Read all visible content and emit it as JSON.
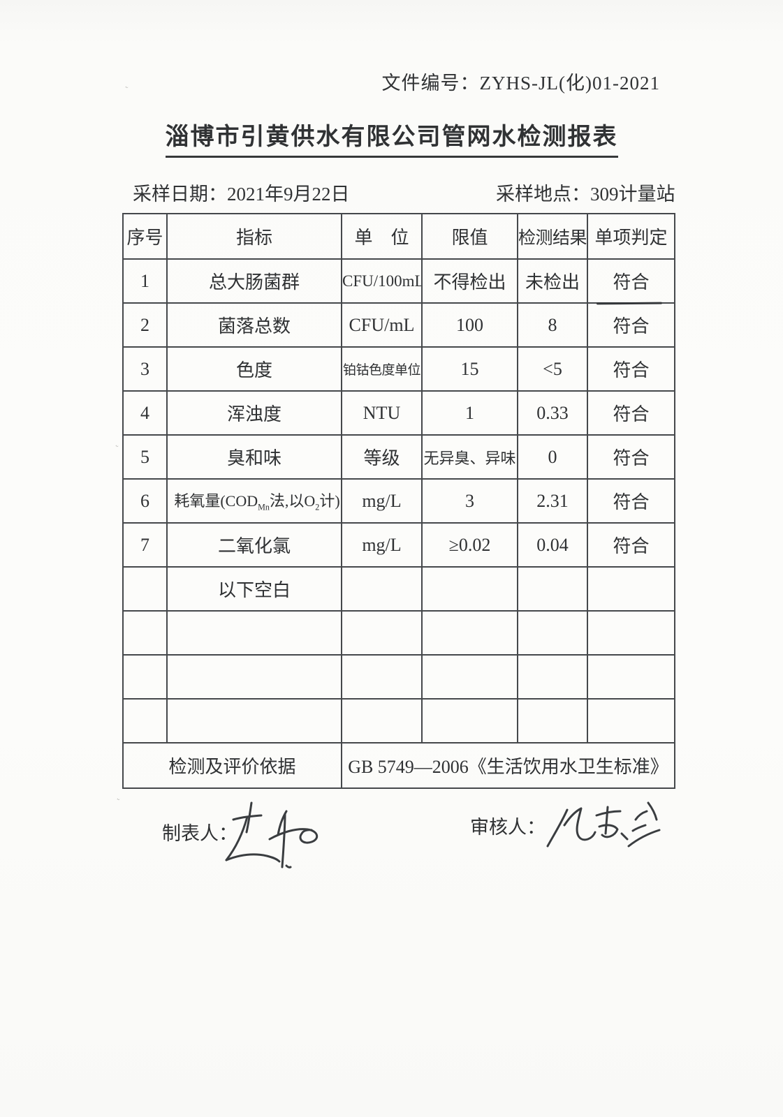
{
  "header": {
    "doc_number_label": "文件编号：",
    "doc_number": "ZYHS-JL(化)01-2021",
    "title": "淄博市引黄供水有限公司管网水检测报表",
    "sample_date_label": "采样日期：",
    "sample_date": "2021年9月22日",
    "sample_location_label": "采样地点：",
    "sample_location": "309计量站"
  },
  "table": {
    "headers": [
      "序号",
      "指标",
      "单　位",
      "限值",
      "检测结果",
      "单项判定"
    ],
    "rows": [
      {
        "no": "1",
        "indicator": "总大肠菌群",
        "unit": "CFU/100mL",
        "limit": "不得检出",
        "result": "未检出",
        "judgement": "符合"
      },
      {
        "no": "2",
        "indicator": "菌落总数",
        "unit": "CFU/mL",
        "limit": "100",
        "result": "8",
        "judgement": "符合"
      },
      {
        "no": "3",
        "indicator": "色度",
        "unit": "铂钴色度单位",
        "limit": "15",
        "result": "<5",
        "judgement": "符合"
      },
      {
        "no": "4",
        "indicator": "浑浊度",
        "unit": "NTU",
        "limit": "1",
        "result": "0.33",
        "judgement": "符合"
      },
      {
        "no": "5",
        "indicator": "臭和味",
        "unit": "等级",
        "limit": "无异臭、异味",
        "result": "0",
        "judgement": "符合"
      },
      {
        "no": "6",
        "indicator": "耗氧量(COD~Mn~法,以O~2~计)",
        "unit": "mg/L",
        "limit": "3",
        "result": "2.31",
        "judgement": "符合"
      },
      {
        "no": "7",
        "indicator": "二氧化氯",
        "unit": "mg/L",
        "limit": "≥0.02",
        "result": "0.04",
        "judgement": "符合"
      },
      {
        "no": "",
        "indicator": "以下空白",
        "unit": "",
        "limit": "",
        "result": "",
        "judgement": ""
      },
      {
        "no": "",
        "indicator": "",
        "unit": "",
        "limit": "",
        "result": "",
        "judgement": ""
      },
      {
        "no": "",
        "indicator": "",
        "unit": "",
        "limit": "",
        "result": "",
        "judgement": ""
      },
      {
        "no": "",
        "indicator": "",
        "unit": "",
        "limit": "",
        "result": "",
        "judgement": ""
      }
    ],
    "basis_label": "检测及评价依据",
    "basis_value": "GB 5749—2006《生活饮用水卫生标准》"
  },
  "signatures": {
    "preparer_label": "制表人：",
    "preparer_name": "赵伟",
    "reviewer_label": "审核人：",
    "reviewer_name": "孙志滨"
  },
  "colors": {
    "ink": "#2f3133",
    "table_border": "#45484b",
    "page_background": "#fbfbf9"
  }
}
